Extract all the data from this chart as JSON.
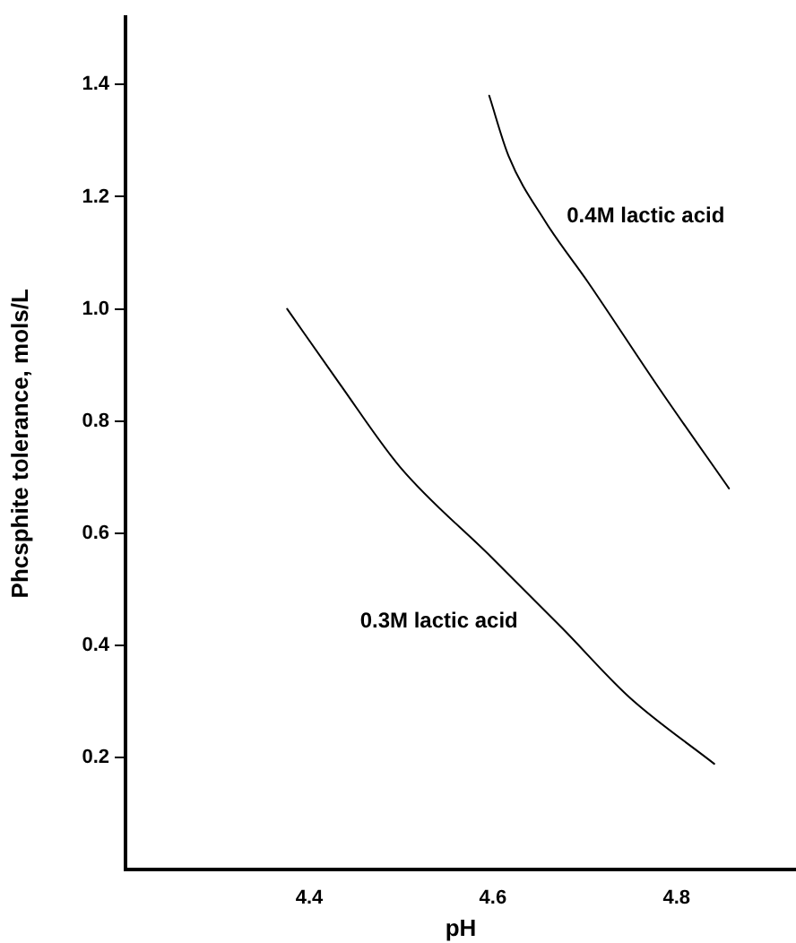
{
  "chart_data": {
    "type": "line",
    "xlabel": "pH",
    "ylabel": "Phcsphite tolerance, mols/L",
    "xlim": [
      4.2,
      4.93
    ],
    "xticks": [
      4.4,
      4.6,
      4.8
    ],
    "ylim": [
      0,
      1.52
    ],
    "yticks": [
      0.2,
      0.4,
      0.6,
      0.8,
      {
        "value": 1,
        "label": "1.0"
      },
      1.2,
      1.4
    ],
    "series": [
      {
        "name": "0.3M lactic acid",
        "color": "#000000",
        "x": [
          4.376,
          4.433,
          4.499,
          4.598,
          4.676,
          4.749,
          4.841
        ],
        "values": [
          1.0,
          0.867,
          0.718,
          0.558,
          0.43,
          0.307,
          0.189
        ]
      },
      {
        "name": "0.4M lactic acid",
        "color": "#000000",
        "x": [
          4.596,
          4.617,
          4.657,
          4.703,
          4.782,
          4.857
        ],
        "values": [
          1.38,
          1.273,
          1.156,
          1.049,
          0.856,
          0.68
        ]
      }
    ],
    "grid": false,
    "legend": false,
    "marker": "none",
    "line_style": "solid"
  }
}
